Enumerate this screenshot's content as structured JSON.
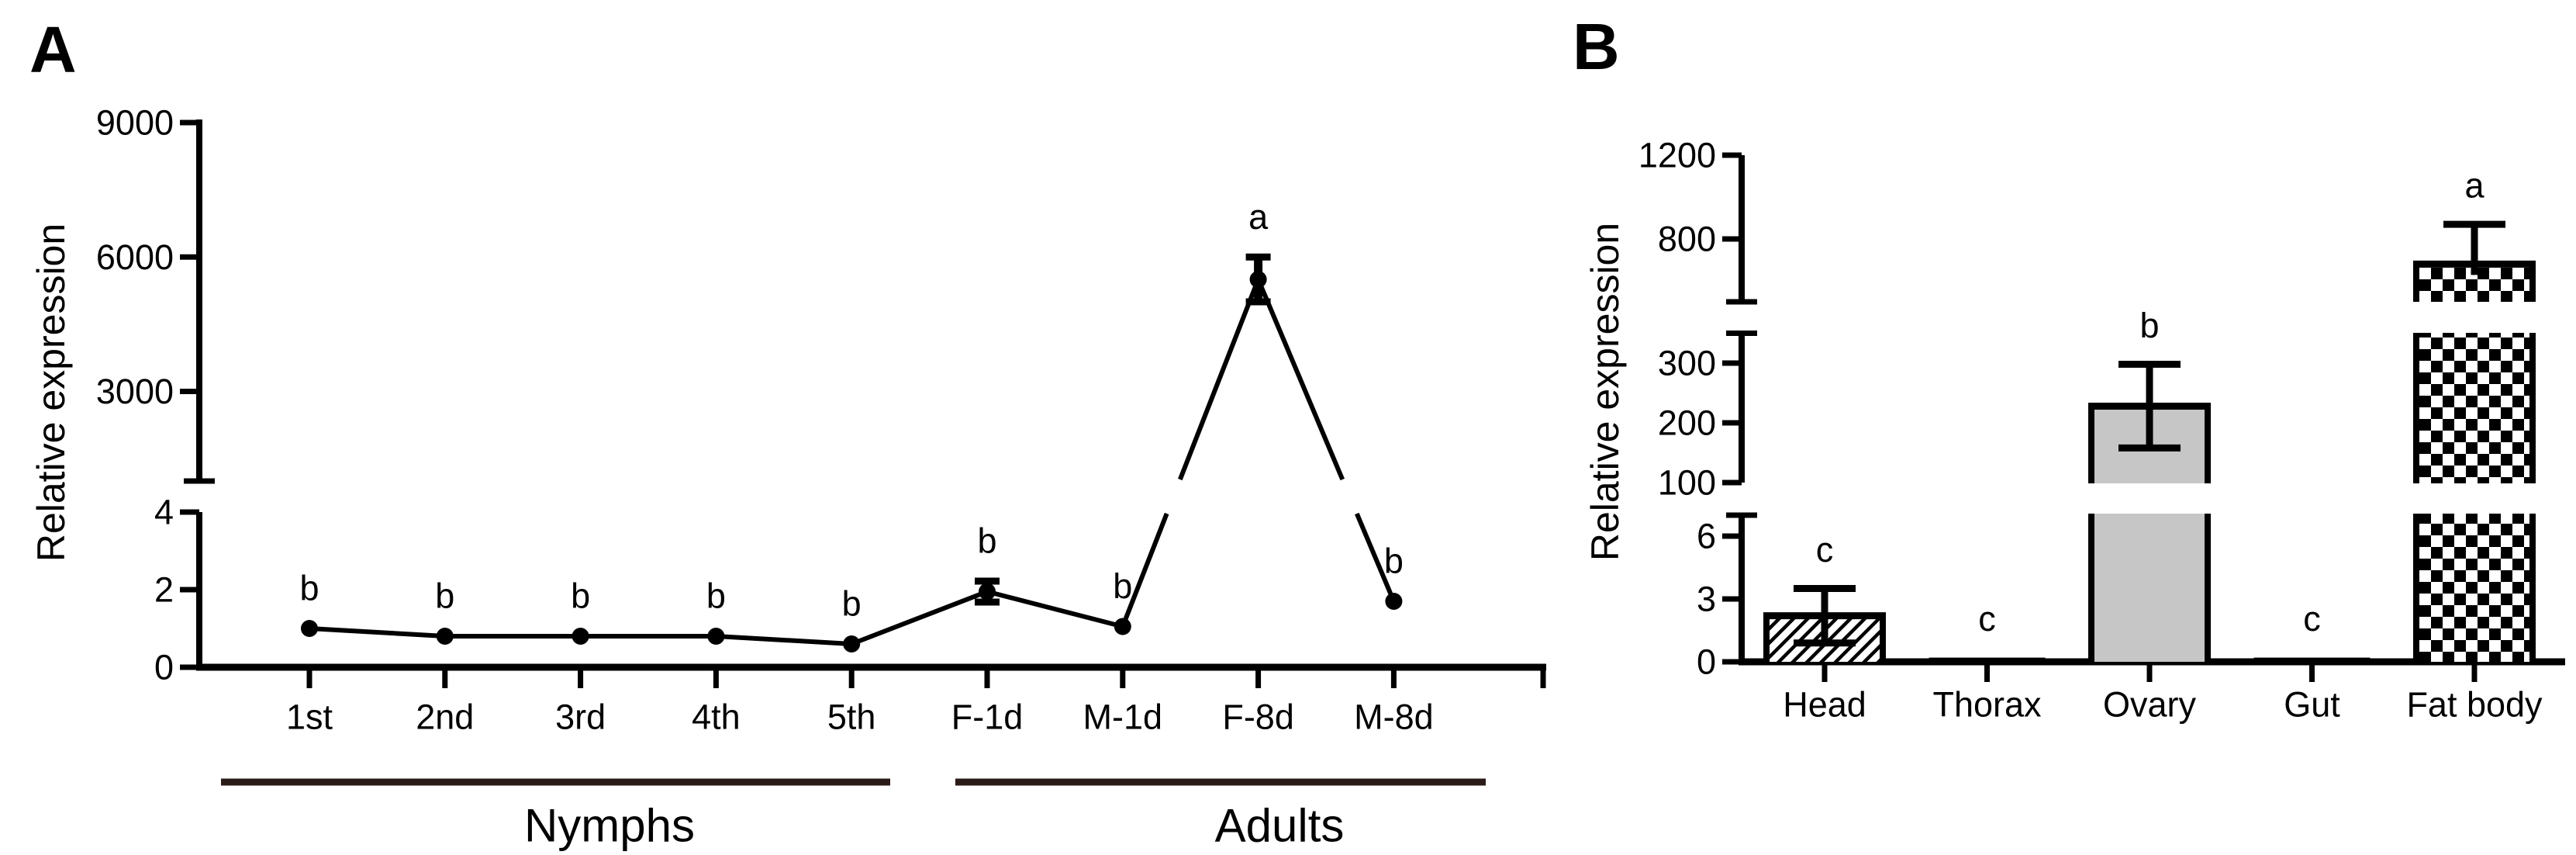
{
  "figure": {
    "panels": [
      {
        "label": "A"
      },
      {
        "label": "B"
      }
    ]
  },
  "colors": {
    "axis": "#000000",
    "marker": "#000000",
    "group_line": "#2a1a18",
    "bar_gray": "#c6c6c6",
    "background": "#ffffff"
  },
  "chart_data": [
    {
      "type": "line",
      "panel": "A",
      "title": "",
      "xlabel": "",
      "ylabel": "Relative expression",
      "categories": [
        "1st",
        "2nd",
        "3rd",
        "4th",
        "5th",
        "F-1d",
        "M-1d",
        "F-8d",
        "M-8d"
      ],
      "values": [
        1.0,
        0.8,
        0.8,
        0.8,
        0.6,
        1.95,
        1.05,
        5500,
        1.7
      ],
      "errors": [
        0,
        0,
        0,
        0,
        0,
        0.27,
        0,
        500,
        0
      ],
      "sig_letters": [
        "b",
        "b",
        "b",
        "b",
        "b",
        "b",
        "b",
        "a",
        "b"
      ],
      "groups": [
        {
          "label": "Nymphs",
          "categories": [
            "1st",
            "2nd",
            "3rd",
            "4th",
            "5th"
          ]
        },
        {
          "label": "Adults",
          "categories": [
            "F-1d",
            "M-1d",
            "F-8d",
            "M-8d"
          ]
        }
      ],
      "y_axis": {
        "broken": true,
        "segments": [
          {
            "range": [
              0,
              4
            ],
            "ticks": [
              0,
              2,
              4
            ]
          },
          {
            "range": [
              1000,
              9000
            ],
            "ticks": [
              3000,
              6000,
              9000
            ]
          }
        ]
      },
      "marker": "filled-circle",
      "grid": false,
      "legend": "none"
    },
    {
      "type": "bar",
      "panel": "B",
      "title": "",
      "xlabel": "",
      "ylabel": "Relative expression",
      "categories": [
        "Head",
        "Thorax",
        "Ovary",
        "Gut",
        "Fat body"
      ],
      "values": [
        2.2,
        0.2,
        228,
        0.2,
        680
      ],
      "errors": [
        1.3,
        0,
        70,
        0,
        190
      ],
      "sig_letters": [
        "c",
        "c",
        "b",
        "c",
        "a"
      ],
      "bar_styles": [
        "diagonal-hatch",
        "solid-black",
        "solid-gray",
        "solid-black",
        "checkerboard"
      ],
      "y_axis": {
        "broken": true,
        "segments": [
          {
            "range": [
              0,
              7
            ],
            "ticks": [
              0,
              3,
              6
            ]
          },
          {
            "range": [
              100,
              350
            ],
            "ticks": [
              100,
              200,
              300
            ]
          },
          {
            "range": [
              500,
              1200
            ],
            "ticks": [
              800,
              1200
            ]
          }
        ]
      },
      "grid": false,
      "legend": "none"
    }
  ]
}
